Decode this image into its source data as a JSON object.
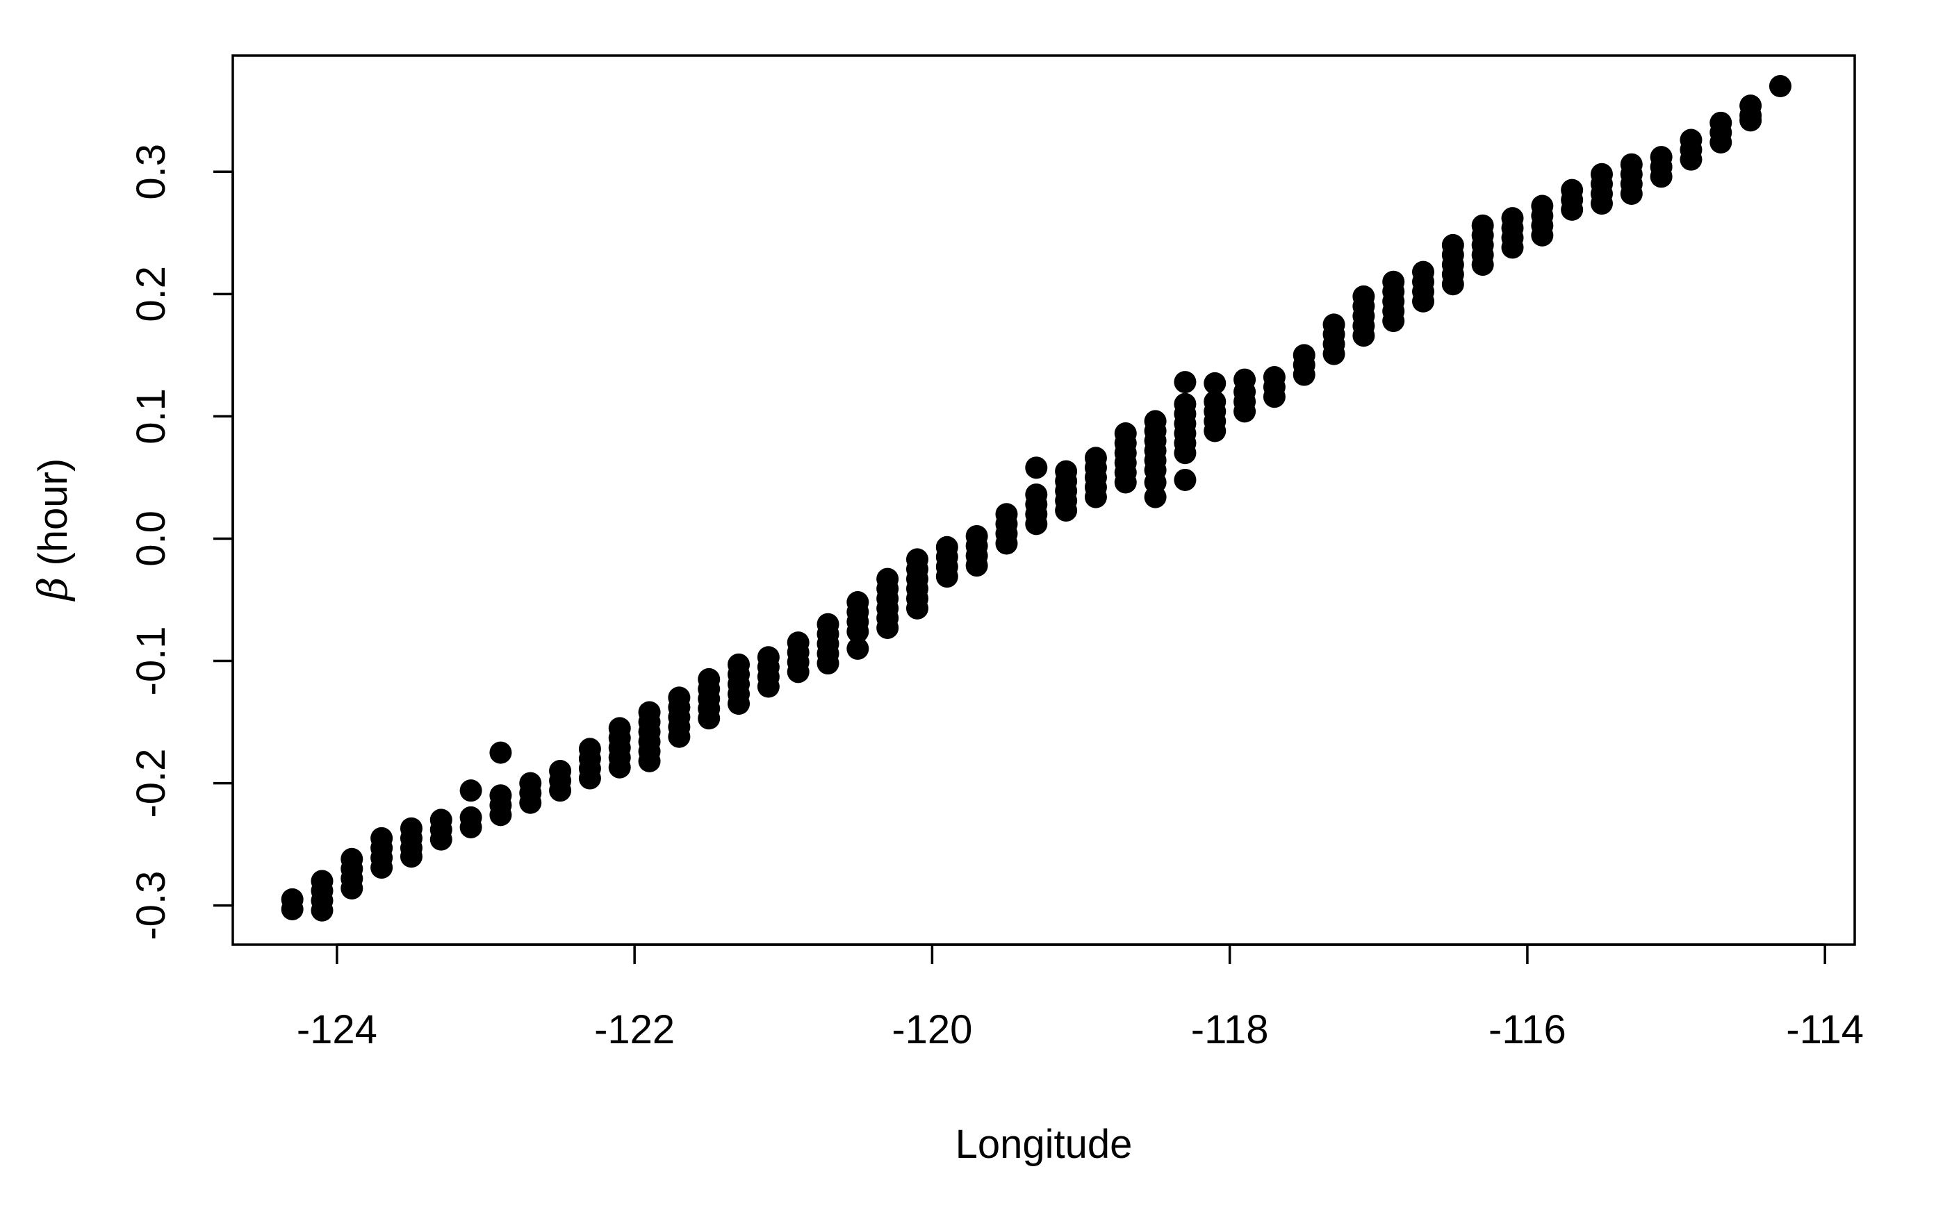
{
  "chart_data": {
    "type": "scatter",
    "title": "",
    "xlabel": "Longitude",
    "ylabel_symbol": "β",
    "ylabel_text": " (hour)",
    "xlim": [
      -124.7,
      -113.8
    ],
    "ylim": [
      -0.332,
      0.395
    ],
    "x_ticks": [
      -124,
      -122,
      -120,
      -118,
      -116,
      -114
    ],
    "x_tick_labels": [
      "-124",
      "-122",
      "-120",
      "-118",
      "-116",
      "-114"
    ],
    "y_ticks": [
      -0.3,
      -0.2,
      -0.1,
      0.0,
      0.1,
      0.2,
      0.3
    ],
    "y_tick_labels": [
      "-0.3",
      "-0.2",
      "-0.1",
      "0.0",
      "0.1",
      "0.2",
      "0.3"
    ],
    "grid": false,
    "legend": "none",
    "marker_color": "#000000",
    "points": [
      [
        -124.3,
        -0.295
      ],
      [
        -124.3,
        -0.303
      ],
      [
        -124.1,
        -0.28
      ],
      [
        -124.1,
        -0.288
      ],
      [
        -124.1,
        -0.296
      ],
      [
        -124.1,
        -0.304
      ],
      [
        -123.9,
        -0.262
      ],
      [
        -123.9,
        -0.27
      ],
      [
        -123.9,
        -0.278
      ],
      [
        -123.9,
        -0.286
      ],
      [
        -123.7,
        -0.245
      ],
      [
        -123.7,
        -0.253
      ],
      [
        -123.7,
        -0.261
      ],
      [
        -123.7,
        -0.269
      ],
      [
        -123.5,
        -0.237
      ],
      [
        -123.5,
        -0.245
      ],
      [
        -123.5,
        -0.253
      ],
      [
        -123.5,
        -0.26
      ],
      [
        -123.3,
        -0.23
      ],
      [
        -123.3,
        -0.238
      ],
      [
        -123.3,
        -0.246
      ],
      [
        -123.1,
        -0.206
      ],
      [
        -123.1,
        -0.228
      ],
      [
        -123.1,
        -0.236
      ],
      [
        -122.9,
        -0.175
      ],
      [
        -122.9,
        -0.21
      ],
      [
        -122.9,
        -0.218
      ],
      [
        -122.9,
        -0.226
      ],
      [
        -122.7,
        -0.2
      ],
      [
        -122.7,
        -0.208
      ],
      [
        -122.7,
        -0.216
      ],
      [
        -122.5,
        -0.19
      ],
      [
        -122.5,
        -0.198
      ],
      [
        -122.5,
        -0.206
      ],
      [
        -122.3,
        -0.172
      ],
      [
        -122.3,
        -0.18
      ],
      [
        -122.3,
        -0.188
      ],
      [
        -122.3,
        -0.196
      ],
      [
        -122.1,
        -0.155
      ],
      [
        -122.1,
        -0.163
      ],
      [
        -122.1,
        -0.171
      ],
      [
        -122.1,
        -0.179
      ],
      [
        -122.1,
        -0.187
      ],
      [
        -121.9,
        -0.142
      ],
      [
        -121.9,
        -0.15
      ],
      [
        -121.9,
        -0.158
      ],
      [
        -121.9,
        -0.166
      ],
      [
        -121.9,
        -0.174
      ],
      [
        -121.9,
        -0.182
      ],
      [
        -121.7,
        -0.13
      ],
      [
        -121.7,
        -0.138
      ],
      [
        -121.7,
        -0.146
      ],
      [
        -121.7,
        -0.154
      ],
      [
        -121.7,
        -0.162
      ],
      [
        -121.5,
        -0.115
      ],
      [
        -121.5,
        -0.123
      ],
      [
        -121.5,
        -0.131
      ],
      [
        -121.5,
        -0.139
      ],
      [
        -121.5,
        -0.147
      ],
      [
        -121.3,
        -0.103
      ],
      [
        -121.3,
        -0.111
      ],
      [
        -121.3,
        -0.119
      ],
      [
        -121.3,
        -0.127
      ],
      [
        -121.3,
        -0.135
      ],
      [
        -121.1,
        -0.097
      ],
      [
        -121.1,
        -0.105
      ],
      [
        -121.1,
        -0.113
      ],
      [
        -121.1,
        -0.121
      ],
      [
        -120.9,
        -0.085
      ],
      [
        -120.9,
        -0.093
      ],
      [
        -120.9,
        -0.101
      ],
      [
        -120.9,
        -0.109
      ],
      [
        -120.7,
        -0.07
      ],
      [
        -120.7,
        -0.078
      ],
      [
        -120.7,
        -0.086
      ],
      [
        -120.7,
        -0.094
      ],
      [
        -120.7,
        -0.102
      ],
      [
        -120.5,
        -0.052
      ],
      [
        -120.5,
        -0.06
      ],
      [
        -120.5,
        -0.068
      ],
      [
        -120.5,
        -0.076
      ],
      [
        -120.5,
        -0.09
      ],
      [
        -120.3,
        -0.033
      ],
      [
        -120.3,
        -0.041
      ],
      [
        -120.3,
        -0.049
      ],
      [
        -120.3,
        -0.057
      ],
      [
        -120.3,
        -0.065
      ],
      [
        -120.3,
        -0.073
      ],
      [
        -120.1,
        -0.017
      ],
      [
        -120.1,
        -0.025
      ],
      [
        -120.1,
        -0.033
      ],
      [
        -120.1,
        -0.041
      ],
      [
        -120.1,
        -0.049
      ],
      [
        -120.1,
        -0.057
      ],
      [
        -119.9,
        -0.007
      ],
      [
        -119.9,
        -0.015
      ],
      [
        -119.9,
        -0.023
      ],
      [
        -119.9,
        -0.031
      ],
      [
        -119.7,
        0.002
      ],
      [
        -119.7,
        -0.006
      ],
      [
        -119.7,
        -0.014
      ],
      [
        -119.7,
        -0.022
      ],
      [
        -119.5,
        0.02
      ],
      [
        -119.5,
        0.012
      ],
      [
        -119.5,
        0.004
      ],
      [
        -119.5,
        -0.004
      ],
      [
        -119.3,
        0.058
      ],
      [
        -119.3,
        0.036
      ],
      [
        -119.3,
        0.028
      ],
      [
        -119.3,
        0.02
      ],
      [
        -119.3,
        0.012
      ],
      [
        -119.1,
        0.055
      ],
      [
        -119.1,
        0.047
      ],
      [
        -119.1,
        0.039
      ],
      [
        -119.1,
        0.031
      ],
      [
        -119.1,
        0.023
      ],
      [
        -118.9,
        0.066
      ],
      [
        -118.9,
        0.058
      ],
      [
        -118.9,
        0.05
      ],
      [
        -118.9,
        0.042
      ],
      [
        -118.9,
        0.034
      ],
      [
        -118.7,
        0.086
      ],
      [
        -118.7,
        0.078
      ],
      [
        -118.7,
        0.07
      ],
      [
        -118.7,
        0.062
      ],
      [
        -118.7,
        0.054
      ],
      [
        -118.7,
        0.046
      ],
      [
        -118.5,
        0.096
      ],
      [
        -118.5,
        0.088
      ],
      [
        -118.5,
        0.08
      ],
      [
        -118.5,
        0.072
      ],
      [
        -118.5,
        0.064
      ],
      [
        -118.5,
        0.056
      ],
      [
        -118.5,
        0.046
      ],
      [
        -118.5,
        0.034
      ],
      [
        -118.3,
        0.128
      ],
      [
        -118.3,
        0.11
      ],
      [
        -118.3,
        0.102
      ],
      [
        -118.3,
        0.094
      ],
      [
        -118.3,
        0.086
      ],
      [
        -118.3,
        0.078
      ],
      [
        -118.3,
        0.07
      ],
      [
        -118.3,
        0.048
      ],
      [
        -118.1,
        0.127
      ],
      [
        -118.1,
        0.112
      ],
      [
        -118.1,
        0.104
      ],
      [
        -118.1,
        0.096
      ],
      [
        -118.1,
        0.088
      ],
      [
        -117.9,
        0.13
      ],
      [
        -117.9,
        0.12
      ],
      [
        -117.9,
        0.112
      ],
      [
        -117.9,
        0.104
      ],
      [
        -117.7,
        0.132
      ],
      [
        -117.7,
        0.124
      ],
      [
        -117.7,
        0.116
      ],
      [
        -117.5,
        0.15
      ],
      [
        -117.5,
        0.142
      ],
      [
        -117.5,
        0.134
      ],
      [
        -117.3,
        0.175
      ],
      [
        -117.3,
        0.167
      ],
      [
        -117.3,
        0.159
      ],
      [
        -117.3,
        0.151
      ],
      [
        -117.1,
        0.198
      ],
      [
        -117.1,
        0.19
      ],
      [
        -117.1,
        0.182
      ],
      [
        -117.1,
        0.174
      ],
      [
        -117.1,
        0.166
      ],
      [
        -116.9,
        0.21
      ],
      [
        -116.9,
        0.202
      ],
      [
        -116.9,
        0.194
      ],
      [
        -116.9,
        0.186
      ],
      [
        -116.9,
        0.178
      ],
      [
        -116.7,
        0.218
      ],
      [
        -116.7,
        0.21
      ],
      [
        -116.7,
        0.202
      ],
      [
        -116.7,
        0.194
      ],
      [
        -116.5,
        0.24
      ],
      [
        -116.5,
        0.232
      ],
      [
        -116.5,
        0.224
      ],
      [
        -116.5,
        0.216
      ],
      [
        -116.5,
        0.208
      ],
      [
        -116.3,
        0.256
      ],
      [
        -116.3,
        0.248
      ],
      [
        -116.3,
        0.24
      ],
      [
        -116.3,
        0.232
      ],
      [
        -116.3,
        0.224
      ],
      [
        -116.1,
        0.262
      ],
      [
        -116.1,
        0.254
      ],
      [
        -116.1,
        0.246
      ],
      [
        -116.1,
        0.238
      ],
      [
        -115.9,
        0.272
      ],
      [
        -115.9,
        0.264
      ],
      [
        -115.9,
        0.256
      ],
      [
        -115.9,
        0.248
      ],
      [
        -115.7,
        0.285
      ],
      [
        -115.7,
        0.277
      ],
      [
        -115.7,
        0.269
      ],
      [
        -115.5,
        0.298
      ],
      [
        -115.5,
        0.29
      ],
      [
        -115.5,
        0.282
      ],
      [
        -115.5,
        0.274
      ],
      [
        -115.3,
        0.306
      ],
      [
        -115.3,
        0.298
      ],
      [
        -115.3,
        0.29
      ],
      [
        -115.3,
        0.282
      ],
      [
        -115.1,
        0.312
      ],
      [
        -115.1,
        0.304
      ],
      [
        -115.1,
        0.296
      ],
      [
        -114.9,
        0.326
      ],
      [
        -114.9,
        0.318
      ],
      [
        -114.9,
        0.31
      ],
      [
        -114.7,
        0.34
      ],
      [
        -114.7,
        0.332
      ],
      [
        -114.7,
        0.324
      ],
      [
        -114.5,
        0.354
      ],
      [
        -114.5,
        0.346
      ],
      [
        -114.5,
        0.342
      ],
      [
        -114.3,
        0.37
      ]
    ]
  }
}
